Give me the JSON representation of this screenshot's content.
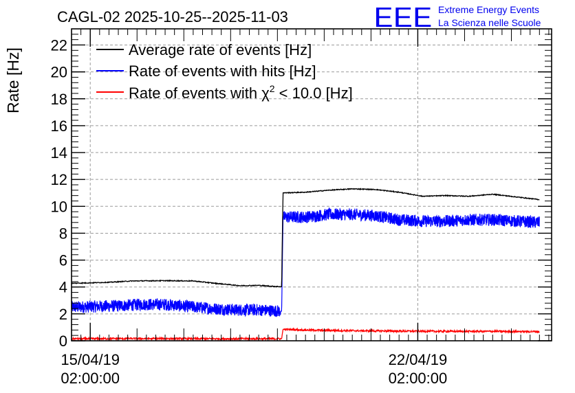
{
  "chart_data": {
    "type": "line",
    "title": "CAGL-02 2025-10-25--2025-11-03",
    "ylabel": "Rate [Hz]",
    "xlabel": "",
    "ylim": [
      0,
      23.2
    ],
    "xlim": [
      0,
      10.26
    ],
    "yticks": [
      0,
      2,
      4,
      6,
      8,
      10,
      12,
      14,
      16,
      18,
      20,
      22
    ],
    "xticks": [
      {
        "x": 0.4,
        "label_line1": "15/04/19",
        "label_line2": "02:00:00"
      },
      {
        "x": 7.4,
        "label_line1": "22/04/19",
        "label_line2": "02:00:00"
      }
    ],
    "grid": true,
    "step_at": 4.5,
    "x_range": [
      0.0,
      10.0
    ],
    "series": [
      {
        "name": "Average rate of events [Hz]",
        "color": "#000000",
        "noise": 0.03,
        "points": [
          [
            0.0,
            4.28
          ],
          [
            0.3,
            4.3
          ],
          [
            0.8,
            4.35
          ],
          [
            1.3,
            4.45
          ],
          [
            2.0,
            4.47
          ],
          [
            2.6,
            4.45
          ],
          [
            3.0,
            4.3
          ],
          [
            3.3,
            4.2
          ],
          [
            3.6,
            4.1
          ],
          [
            4.0,
            4.12
          ],
          [
            4.3,
            4.05
          ],
          [
            4.49,
            4.02
          ],
          [
            4.52,
            11.0
          ],
          [
            5.0,
            11.05
          ],
          [
            5.5,
            11.2
          ],
          [
            6.0,
            11.3
          ],
          [
            6.5,
            11.25
          ],
          [
            7.0,
            11.05
          ],
          [
            7.5,
            10.75
          ],
          [
            8.0,
            10.8
          ],
          [
            8.5,
            10.75
          ],
          [
            9.0,
            10.9
          ],
          [
            9.5,
            10.7
          ],
          [
            10.0,
            10.5
          ]
        ]
      },
      {
        "name": "Rate of events with hits [Hz]",
        "color": "#0000ff",
        "noise": 0.45,
        "points": [
          [
            0.0,
            2.5
          ],
          [
            0.5,
            2.55
          ],
          [
            1.0,
            2.6
          ],
          [
            1.5,
            2.7
          ],
          [
            2.0,
            2.7
          ],
          [
            2.5,
            2.55
          ],
          [
            3.0,
            2.4
          ],
          [
            3.5,
            2.3
          ],
          [
            4.0,
            2.3
          ],
          [
            4.49,
            2.2
          ],
          [
            4.52,
            9.2
          ],
          [
            5.0,
            9.2
          ],
          [
            5.5,
            9.4
          ],
          [
            6.0,
            9.4
          ],
          [
            6.5,
            9.3
          ],
          [
            7.0,
            9.0
          ],
          [
            7.5,
            8.9
          ],
          [
            8.0,
            8.9
          ],
          [
            8.5,
            9.0
          ],
          [
            9.0,
            9.0
          ],
          [
            9.5,
            8.9
          ],
          [
            10.0,
            8.8
          ]
        ]
      },
      {
        "name": "Rate of events with χ² < 10.0 [Hz]",
        "color": "#ff0000",
        "noise": 0.07,
        "points": [
          [
            0.0,
            0.15
          ],
          [
            1.0,
            0.16
          ],
          [
            2.0,
            0.16
          ],
          [
            3.0,
            0.15
          ],
          [
            4.0,
            0.15
          ],
          [
            4.49,
            0.15
          ],
          [
            4.52,
            0.85
          ],
          [
            5.0,
            0.8
          ],
          [
            6.0,
            0.75
          ],
          [
            7.0,
            0.72
          ],
          [
            8.0,
            0.7
          ],
          [
            9.0,
            0.7
          ],
          [
            10.0,
            0.68
          ]
        ]
      }
    ],
    "legend": {
      "position": "top-left",
      "entries": [
        {
          "text": "Average rate of events [Hz]",
          "color": "#000000"
        },
        {
          "text": "Rate of events with hits [Hz]",
          "color": "#0000ff"
        },
        {
          "text_main": "Rate of events with χ",
          "sup": "2",
          "text_tail": " < 10.0 [Hz]",
          "color": "#ff0000"
        }
      ]
    }
  },
  "logo": {
    "mark": "EEE",
    "line1": "Extreme Energy Events",
    "line2": "La Scienza nelle Scuole",
    "color": "#0000ee"
  }
}
